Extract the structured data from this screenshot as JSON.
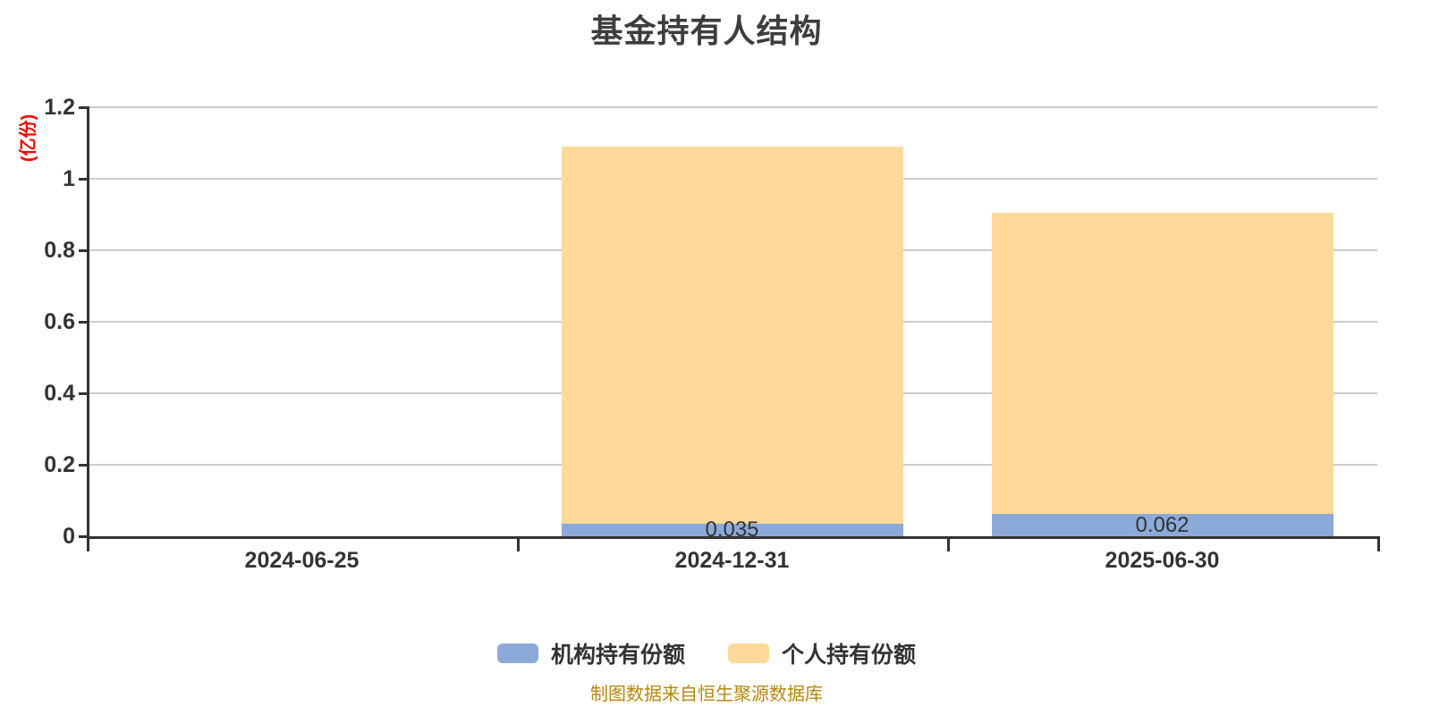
{
  "title": "基金持有人结构",
  "footer": "制图数据来自恒生聚源数据库",
  "colors": {
    "title": "#3d3d3d",
    "axis": "#333333",
    "grid": "#cccccc",
    "tick_label": "#333333",
    "bar_label": "#333333",
    "y_unit_label": "#ff0000",
    "footer": "#b8860b",
    "background": "#ffffff",
    "institutional": "#8baad9",
    "individual": "#ffd999"
  },
  "chart_data": {
    "type": "bar",
    "stacked": true,
    "title": "基金持有人结构",
    "categories": [
      "2024-06-25",
      "2024-12-31",
      "2025-06-30"
    ],
    "series": [
      {
        "name": "机构持有份额",
        "color": "#8baad9",
        "values": [
          0,
          0.035,
          0.062
        ],
        "labels": [
          "",
          "0.035",
          "0.062"
        ]
      },
      {
        "name": "个人持有份额",
        "color": "#ffd999",
        "values": [
          0,
          1.055,
          0.843
        ],
        "labels": [
          "",
          "",
          ""
        ]
      }
    ],
    "totals": [
      0,
      1.09,
      0.905
    ],
    "xlabel": "",
    "ylabel": "(亿份)",
    "ylim": [
      0,
      1.2
    ],
    "yticks": [
      0,
      0.2,
      0.4,
      0.6,
      0.8,
      1,
      1.2
    ],
    "ytick_labels": [
      "0",
      "0.2",
      "0.4",
      "0.6",
      "0.8",
      "1",
      "1.2"
    ],
    "grid": true,
    "legend_position": "bottom"
  }
}
